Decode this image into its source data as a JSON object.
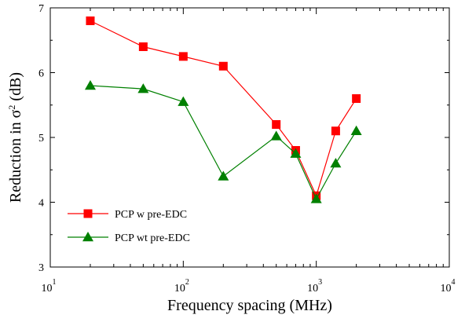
{
  "chart_data": {
    "type": "line",
    "title": "",
    "xlabel": "Frequency spacing (MHz)",
    "ylabel_prefix": "Reduction in σ",
    "ylabel_sup": "2",
    "ylabel_suffix": " (dB)",
    "xscale": "log",
    "xlim": [
      10,
      10000
    ],
    "ylim": [
      3,
      7
    ],
    "xticks": [
      {
        "base": "10",
        "exp": "1"
      },
      {
        "base": "10",
        "exp": "2"
      },
      {
        "base": "10",
        "exp": "3"
      },
      {
        "base": "10",
        "exp": "4"
      }
    ],
    "yticks": [
      "3",
      "4",
      "5",
      "6",
      "7"
    ],
    "grid": false,
    "legend_position": "bottom-left",
    "series": [
      {
        "name": "PCP w pre-EDC",
        "color": "#ff0000",
        "marker": "square",
        "x": [
          20,
          50,
          100,
          200,
          500,
          700,
          1000,
          1400,
          2000
        ],
        "y": [
          6.8,
          6.4,
          6.25,
          6.1,
          5.2,
          4.8,
          4.1,
          5.1,
          5.6
        ]
      },
      {
        "name": "PCP wt pre-EDC",
        "color": "#008000",
        "marker": "triangle",
        "x": [
          20,
          50,
          100,
          200,
          500,
          700,
          1000,
          1400,
          2000
        ],
        "y": [
          5.8,
          5.75,
          5.55,
          4.4,
          5.02,
          4.75,
          4.05,
          4.6,
          5.1
        ]
      }
    ]
  }
}
